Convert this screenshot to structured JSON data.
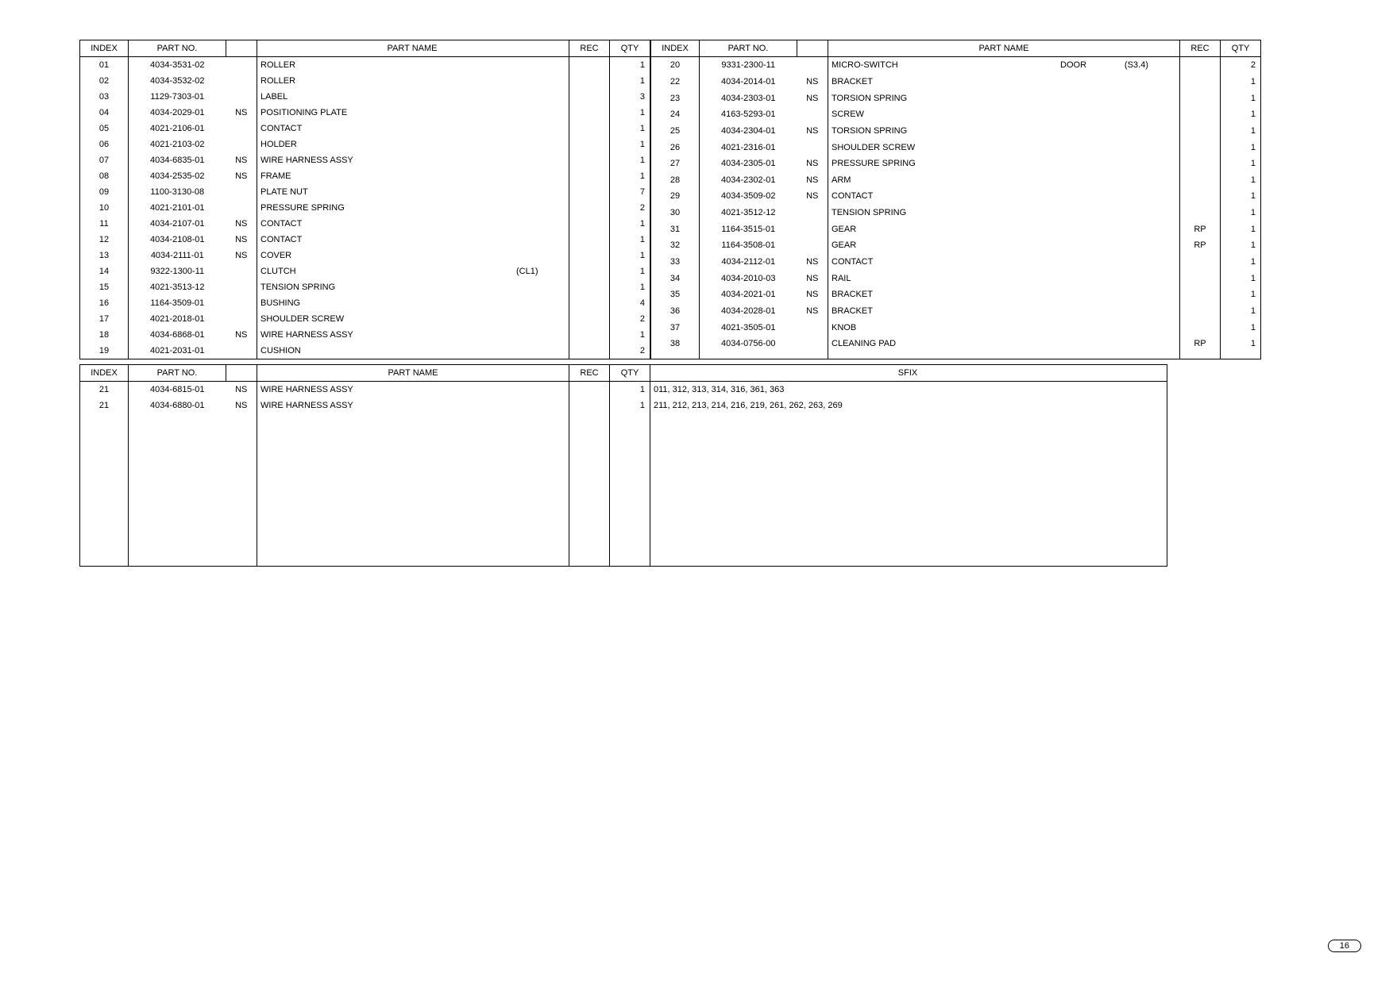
{
  "page_number": "16",
  "table1": {
    "headers": [
      "INDEX",
      "PART NO.",
      "",
      "PART NAME",
      "",
      "REC",
      "QTY"
    ],
    "rows": [
      {
        "index": "01",
        "partno": "4034-3531-02",
        "ns": "",
        "name": "ROLLER",
        "extra": "",
        "rec": "",
        "qty": "1"
      },
      {
        "index": "02",
        "partno": "4034-3532-02",
        "ns": "",
        "name": "ROLLER",
        "extra": "",
        "rec": "",
        "qty": "1"
      },
      {
        "index": "03",
        "partno": "1129-7303-01",
        "ns": "",
        "name": "LABEL",
        "extra": "",
        "rec": "",
        "qty": "3"
      },
      {
        "index": "04",
        "partno": "4034-2029-01",
        "ns": "NS",
        "name": "POSITIONING PLATE",
        "extra": "",
        "rec": "",
        "qty": "1"
      },
      {
        "index": "05",
        "partno": "4021-2106-01",
        "ns": "",
        "name": "CONTACT",
        "extra": "",
        "rec": "",
        "qty": "1"
      },
      {
        "index": "06",
        "partno": "4021-2103-02",
        "ns": "",
        "name": "HOLDER",
        "extra": "",
        "rec": "",
        "qty": "1"
      },
      {
        "index": "07",
        "partno": "4034-6835-01",
        "ns": "NS",
        "name": "WIRE HARNESS ASSY",
        "extra": "",
        "rec": "",
        "qty": "1"
      },
      {
        "index": "08",
        "partno": "4034-2535-02",
        "ns": "NS",
        "name": "FRAME",
        "extra": "",
        "rec": "",
        "qty": "1"
      },
      {
        "index": "09",
        "partno": "1100-3130-08",
        "ns": "",
        "name": "PLATE NUT",
        "extra": "",
        "rec": "",
        "qty": "7"
      },
      {
        "index": "10",
        "partno": "4021-2101-01",
        "ns": "",
        "name": "PRESSURE SPRING",
        "extra": "",
        "rec": "",
        "qty": "2"
      },
      {
        "index": "11",
        "partno": "4034-2107-01",
        "ns": "NS",
        "name": "CONTACT",
        "extra": "",
        "rec": "",
        "qty": "1"
      },
      {
        "index": "12",
        "partno": "4034-2108-01",
        "ns": "NS",
        "name": "CONTACT",
        "extra": "",
        "rec": "",
        "qty": "1"
      },
      {
        "index": "13",
        "partno": "4034-2111-01",
        "ns": "NS",
        "name": "COVER",
        "extra": "",
        "rec": "",
        "qty": "1"
      },
      {
        "index": "14",
        "partno": "9322-1300-11",
        "ns": "",
        "name": "CLUTCH",
        "extra": "(CL1)",
        "rec": "",
        "qty": "1"
      },
      {
        "index": "15",
        "partno": "4021-3513-12",
        "ns": "",
        "name": "TENSION SPRING",
        "extra": "",
        "rec": "",
        "qty": "1"
      },
      {
        "index": "16",
        "partno": "1164-3509-01",
        "ns": "",
        "name": "BUSHING",
        "extra": "",
        "rec": "",
        "qty": "4"
      },
      {
        "index": "17",
        "partno": "4021-2018-01",
        "ns": "",
        "name": "SHOULDER SCREW",
        "extra": "",
        "rec": "",
        "qty": "2"
      },
      {
        "index": "18",
        "partno": "4034-6868-01",
        "ns": "NS",
        "name": "WIRE HARNESS ASSY",
        "extra": "",
        "rec": "",
        "qty": "1"
      },
      {
        "index": "19",
        "partno": "4021-2031-01",
        "ns": "",
        "name": "CUSHION",
        "extra": "",
        "rec": "",
        "qty": "2"
      }
    ]
  },
  "table2": {
    "headers": [
      "INDEX",
      "PART NO.",
      "",
      "PART NAME",
      "",
      "",
      "REC",
      "QTY"
    ],
    "rows": [
      {
        "index": "20",
        "partno": "9331-2300-11",
        "ns": "",
        "name": "MICRO-SWITCH",
        "extra1": "DOOR",
        "extra2": "(S3.4)",
        "rec": "",
        "qty": "2"
      },
      {
        "index": "22",
        "partno": "4034-2014-01",
        "ns": "NS",
        "name": "BRACKET",
        "extra1": "",
        "extra2": "",
        "rec": "",
        "qty": "1"
      },
      {
        "index": "23",
        "partno": "4034-2303-01",
        "ns": "NS",
        "name": "TORSION SPRING",
        "extra1": "",
        "extra2": "",
        "rec": "",
        "qty": "1"
      },
      {
        "index": "24",
        "partno": "4163-5293-01",
        "ns": "",
        "name": "SCREW",
        "extra1": "",
        "extra2": "",
        "rec": "",
        "qty": "1"
      },
      {
        "index": "25",
        "partno": "4034-2304-01",
        "ns": "NS",
        "name": "TORSION SPRING",
        "extra1": "",
        "extra2": "",
        "rec": "",
        "qty": "1"
      },
      {
        "index": "26",
        "partno": "4021-2316-01",
        "ns": "",
        "name": "SHOULDER SCREW",
        "extra1": "",
        "extra2": "",
        "rec": "",
        "qty": "1"
      },
      {
        "index": "27",
        "partno": "4034-2305-01",
        "ns": "NS",
        "name": "PRESSURE SPRING",
        "extra1": "",
        "extra2": "",
        "rec": "",
        "qty": "1"
      },
      {
        "index": "28",
        "partno": "4034-2302-01",
        "ns": "NS",
        "name": "ARM",
        "extra1": "",
        "extra2": "",
        "rec": "",
        "qty": "1"
      },
      {
        "index": "29",
        "partno": "4034-3509-02",
        "ns": "NS",
        "name": "CONTACT",
        "extra1": "",
        "extra2": "",
        "rec": "",
        "qty": "1"
      },
      {
        "index": "30",
        "partno": "4021-3512-12",
        "ns": "",
        "name": "TENSION SPRING",
        "extra1": "",
        "extra2": "",
        "rec": "",
        "qty": "1"
      },
      {
        "index": "31",
        "partno": "1164-3515-01",
        "ns": "",
        "name": "GEAR",
        "extra1": "",
        "extra2": "",
        "rec": "RP",
        "qty": "1"
      },
      {
        "index": "32",
        "partno": "1164-3508-01",
        "ns": "",
        "name": "GEAR",
        "extra1": "",
        "extra2": "",
        "rec": "RP",
        "qty": "1"
      },
      {
        "index": "33",
        "partno": "4034-2112-01",
        "ns": "NS",
        "name": "CONTACT",
        "extra1": "",
        "extra2": "",
        "rec": "",
        "qty": "1"
      },
      {
        "index": "34",
        "partno": "4034-2010-03",
        "ns": "NS",
        "name": "RAIL",
        "extra1": "",
        "extra2": "",
        "rec": "",
        "qty": "1"
      },
      {
        "index": "35",
        "partno": "4034-2021-01",
        "ns": "NS",
        "name": "BRACKET",
        "extra1": "",
        "extra2": "",
        "rec": "",
        "qty": "1"
      },
      {
        "index": "36",
        "partno": "4034-2028-01",
        "ns": "NS",
        "name": "BRACKET",
        "extra1": "",
        "extra2": "",
        "rec": "",
        "qty": "1"
      },
      {
        "index": "37",
        "partno": "4021-3505-01",
        "ns": "",
        "name": "KNOB",
        "extra1": "",
        "extra2": "",
        "rec": "",
        "qty": "1"
      },
      {
        "index": "38",
        "partno": "4034-0756-00",
        "ns": "",
        "name": "CLEANING PAD",
        "extra1": "",
        "extra2": "",
        "rec": "RP",
        "qty": "1"
      }
    ]
  },
  "table3": {
    "headers_left": [
      "INDEX",
      "PART NO.",
      "",
      "PART NAME",
      "",
      "REC",
      "QTY"
    ],
    "header_right": "SFIX",
    "rows": [
      {
        "index": "21",
        "partno": "4034-6815-01",
        "ns": "NS",
        "name": "WIRE HARNESS ASSY",
        "extra": "",
        "rec": "",
        "qty": "1",
        "sfix": "011, 312, 313, 314, 316, 361, 363"
      },
      {
        "index": "21",
        "partno": "4034-6880-01",
        "ns": "NS",
        "name": "WIRE HARNESS ASSY",
        "extra": "",
        "rec": "",
        "qty": "1",
        "sfix": "211, 212, 213, 214, 216, 219, 261, 262, 263, 269"
      }
    ],
    "blank_rows": 24
  }
}
